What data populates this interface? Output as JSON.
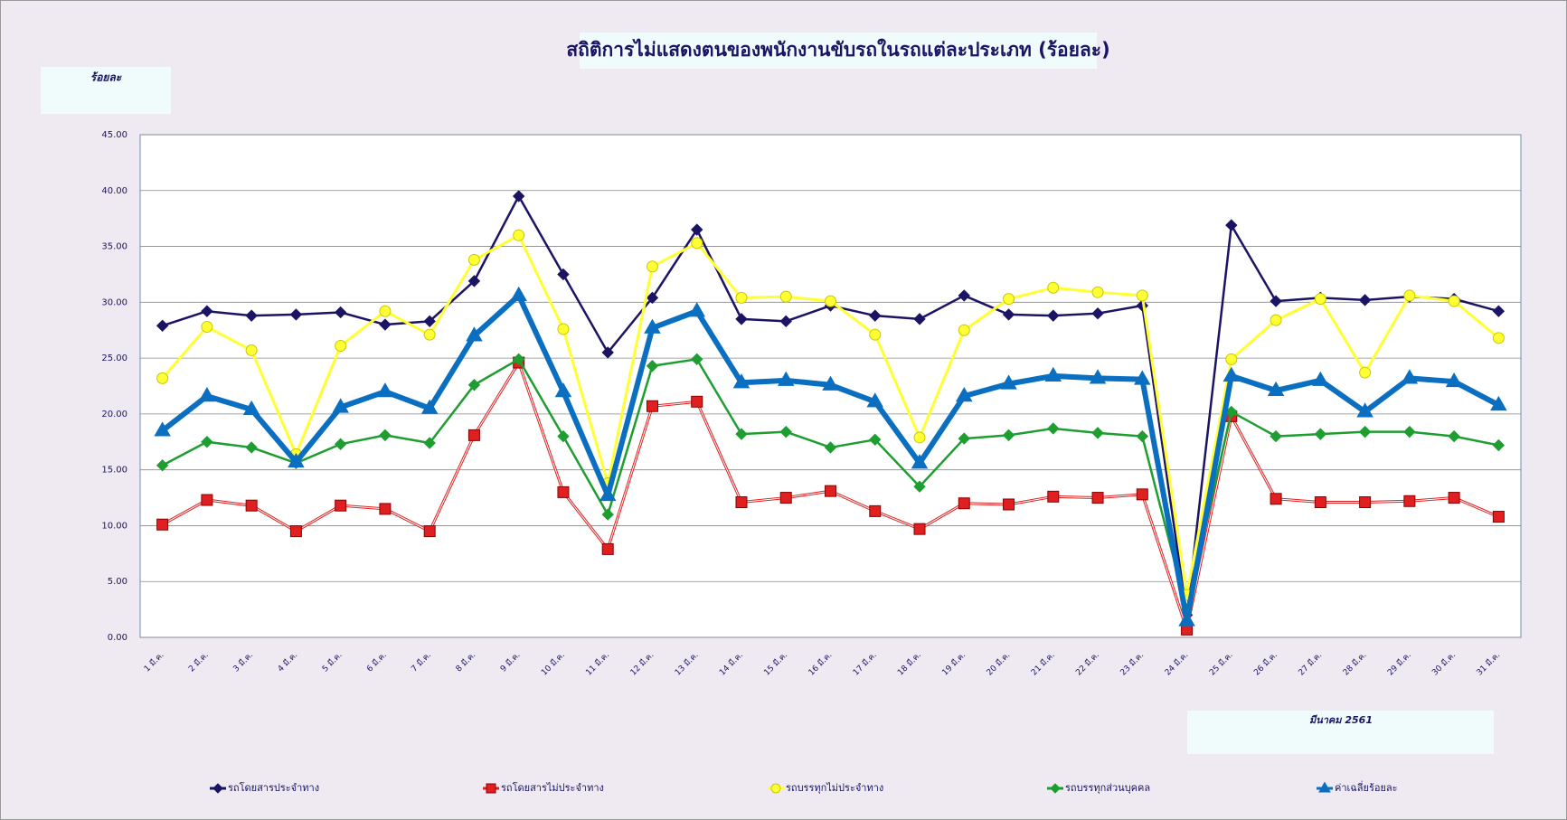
{
  "chart_data": {
    "type": "line",
    "title": "สถิติการไม่แสดงตนของพนักงานขับรถในรถแต่ละประเภท (ร้อยละ)",
    "y_label": "ร้อยละ",
    "note": "มีนาคม 2561",
    "categories": [
      "1 มี.ค.",
      "2 มี.ค.",
      "3 มี.ค.",
      "4 มี.ค.",
      "5 มี.ค.",
      "6 มี.ค.",
      "7 มี.ค.",
      "8 มี.ค.",
      "9 มี.ค.",
      "10 มี.ค.",
      "11 มี.ค.",
      "12 มี.ค.",
      "13 มี.ค.",
      "14 มี.ค.",
      "15 มี.ค.",
      "16 มี.ค.",
      "17 มี.ค.",
      "18 มี.ค.",
      "19 มี.ค.",
      "20 มี.ค.",
      "21 มี.ค.",
      "22 มี.ค.",
      "23 มี.ค.",
      "24 มี.ค.",
      "25 มี.ค.",
      "26 มี.ค.",
      "27 มี.ค.",
      "28 มี.ค.",
      "29 มี.ค.",
      "30 มี.ค.",
      "31 มี.ค."
    ],
    "series": [
      {
        "name": "รถโดยสารประจำทาง",
        "color": "#1b1464",
        "marker": "diamond",
        "values": [
          27.9,
          29.2,
          28.8,
          28.9,
          29.1,
          28.0,
          28.3,
          31.9,
          39.5,
          32.5,
          25.5,
          30.4,
          36.5,
          28.5,
          28.3,
          29.7,
          28.8,
          28.5,
          30.6,
          28.9,
          28.8,
          29.0,
          29.7,
          2.0,
          36.9,
          30.1,
          30.4,
          30.2,
          30.5,
          30.3,
          29.2
        ]
      },
      {
        "name": "รถโดยสารไม่ประจำทาง",
        "color": "#e02020",
        "marker": "square",
        "values": [
          10.1,
          12.3,
          11.8,
          9.5,
          11.8,
          11.5,
          9.5,
          18.1,
          24.6,
          13.0,
          7.9,
          20.7,
          21.1,
          12.1,
          12.5,
          13.1,
          11.3,
          9.7,
          12.0,
          11.9,
          12.6,
          12.5,
          12.8,
          0.7,
          19.8,
          12.4,
          12.1,
          12.1,
          12.2,
          12.5,
          10.8
        ]
      },
      {
        "name": "รถบรรทุกไม่ประจำทาง",
        "color": "#ffff33",
        "marker": "circle",
        "values": [
          23.2,
          27.8,
          25.7,
          16.4,
          26.1,
          29.2,
          27.1,
          33.8,
          36.0,
          27.6,
          13.8,
          33.2,
          35.3,
          30.4,
          30.5,
          30.1,
          27.1,
          17.9,
          27.5,
          30.3,
          31.3,
          30.9,
          30.6,
          3.8,
          24.9,
          28.4,
          30.3,
          23.7,
          30.6,
          30.1,
          26.8
        ]
      },
      {
        "name": "รถบรรทุกส่วนบุคคล",
        "color": "#1e9e30",
        "marker": "diamond",
        "values": [
          15.4,
          17.5,
          17.0,
          15.6,
          17.3,
          18.1,
          17.4,
          22.6,
          24.9,
          18.0,
          11.0,
          24.3,
          24.9,
          18.2,
          18.4,
          17.0,
          17.7,
          13.5,
          17.8,
          18.1,
          18.7,
          18.3,
          18.0,
          2.5,
          20.2,
          18.0,
          18.2,
          18.4,
          18.4,
          18.0,
          17.2
        ]
      },
      {
        "name": "ค่าเฉลี่ยร้อยละ",
        "color": "#0a6fc0",
        "marker": "triangle",
        "values": [
          18.5,
          21.6,
          20.4,
          15.7,
          20.6,
          22.0,
          20.5,
          27.0,
          30.6,
          22.0,
          12.7,
          27.7,
          29.2,
          22.8,
          23.0,
          22.6,
          21.1,
          15.6,
          21.6,
          22.7,
          23.4,
          23.2,
          23.1,
          1.5,
          23.4,
          22.1,
          23.0,
          20.2,
          23.2,
          22.9,
          20.8
        ]
      }
    ],
    "ylim": [
      0,
      45
    ],
    "yticks": [
      {
        "value": 0,
        "label": "0.00"
      },
      {
        "value": 5,
        "label": "5.00"
      },
      {
        "value": 10,
        "label": "10.00"
      },
      {
        "value": 15,
        "label": "15.00"
      },
      {
        "value": 20,
        "label": "20.00"
      },
      {
        "value": 25,
        "label": "25.00"
      },
      {
        "value": 30,
        "label": "30.00"
      },
      {
        "value": 35,
        "label": "35.00"
      },
      {
        "value": 40,
        "label": "40.00"
      },
      {
        "value": 45,
        "label": "45.00"
      }
    ],
    "grid": true,
    "legend": "bottom"
  }
}
